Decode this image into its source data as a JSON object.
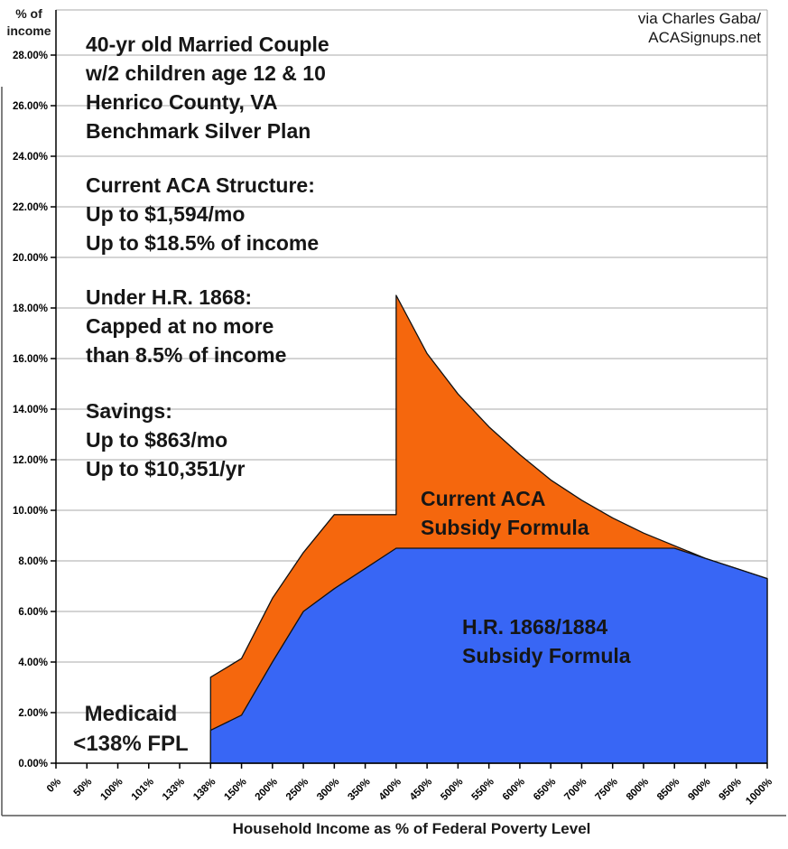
{
  "credit": "via Charles Gaba/\nACASignups.net",
  "y_axis_unit_label": "% of\nincome",
  "annotations": {
    "household": "40-yr old Married Couple\nw/2 children age 12 & 10\nHenrico County, VA\nBenchmark Silver Plan",
    "current_structure": "Current ACA Structure:\nUp to $1,594/mo\nUp to $18.5% of income",
    "hr1868": "Under H.R. 1868:\nCapped at no more\nthan 8.5% of income",
    "savings": "Savings:\nUp to $863/mo\nUp to $10,351/yr",
    "medicaid": "Medicaid\n<138% FPL",
    "orange_area_label": "Current ACA\nSubsidy Formula",
    "blue_area_label": "H.R. 1868/1884\nSubsidy Formula"
  },
  "chart_data": {
    "type": "area",
    "title": "",
    "xlabel": "Household Income as % of Federal Poverty Level",
    "ylabel": "% of income",
    "grid": true,
    "grid_color": "#A8A8A8",
    "axis_color": "#000000",
    "outline_color": "#111111",
    "ylim": [
      0,
      29.8
    ],
    "y_tick_step": 2,
    "y_tick_labels": [
      "0.00%",
      "2.00%",
      "4.00%",
      "6.00%",
      "8.00%",
      "10.00%",
      "12.00%",
      "14.00%",
      "16.00%",
      "18.00%",
      "20.00%",
      "22.00%",
      "24.00%",
      "26.00%",
      "28.00%"
    ],
    "categories": [
      "0%",
      "50%",
      "100%",
      "101%",
      "133%",
      "138%",
      "150%",
      "200%",
      "250%",
      "300%",
      "350%",
      "400%",
      "450%",
      "500%",
      "550%",
      "600%",
      "650%",
      "700%",
      "750%",
      "800%",
      "850%",
      "900%",
      "950%",
      "1000%"
    ],
    "series": [
      {
        "name": "Current ACA Subsidy Formula",
        "color": "#F5670D",
        "note": "vertical subsidy cliff at 400% FPL: jumps from 9.83 to 18.5",
        "values": [
          null,
          null,
          null,
          null,
          null,
          3.4,
          4.14,
          6.52,
          8.33,
          9.83,
          9.83,
          [
            9.83,
            18.5
          ],
          16.2,
          14.6,
          13.3,
          12.2,
          11.2,
          10.4,
          9.7,
          9.1,
          8.6,
          8.1,
          7.7,
          7.3
        ]
      },
      {
        "name": "H.R. 1868/1884 Subsidy Formula",
        "color": "#3866F5",
        "note": "capped at no more than 8.5% of income",
        "values": [
          null,
          null,
          null,
          null,
          null,
          1.3,
          1.9,
          4.0,
          6.0,
          6.9,
          7.7,
          8.5,
          8.5,
          8.5,
          8.5,
          8.5,
          8.5,
          8.5,
          8.5,
          8.5,
          8.5,
          8.1,
          7.7,
          7.3
        ]
      }
    ]
  }
}
